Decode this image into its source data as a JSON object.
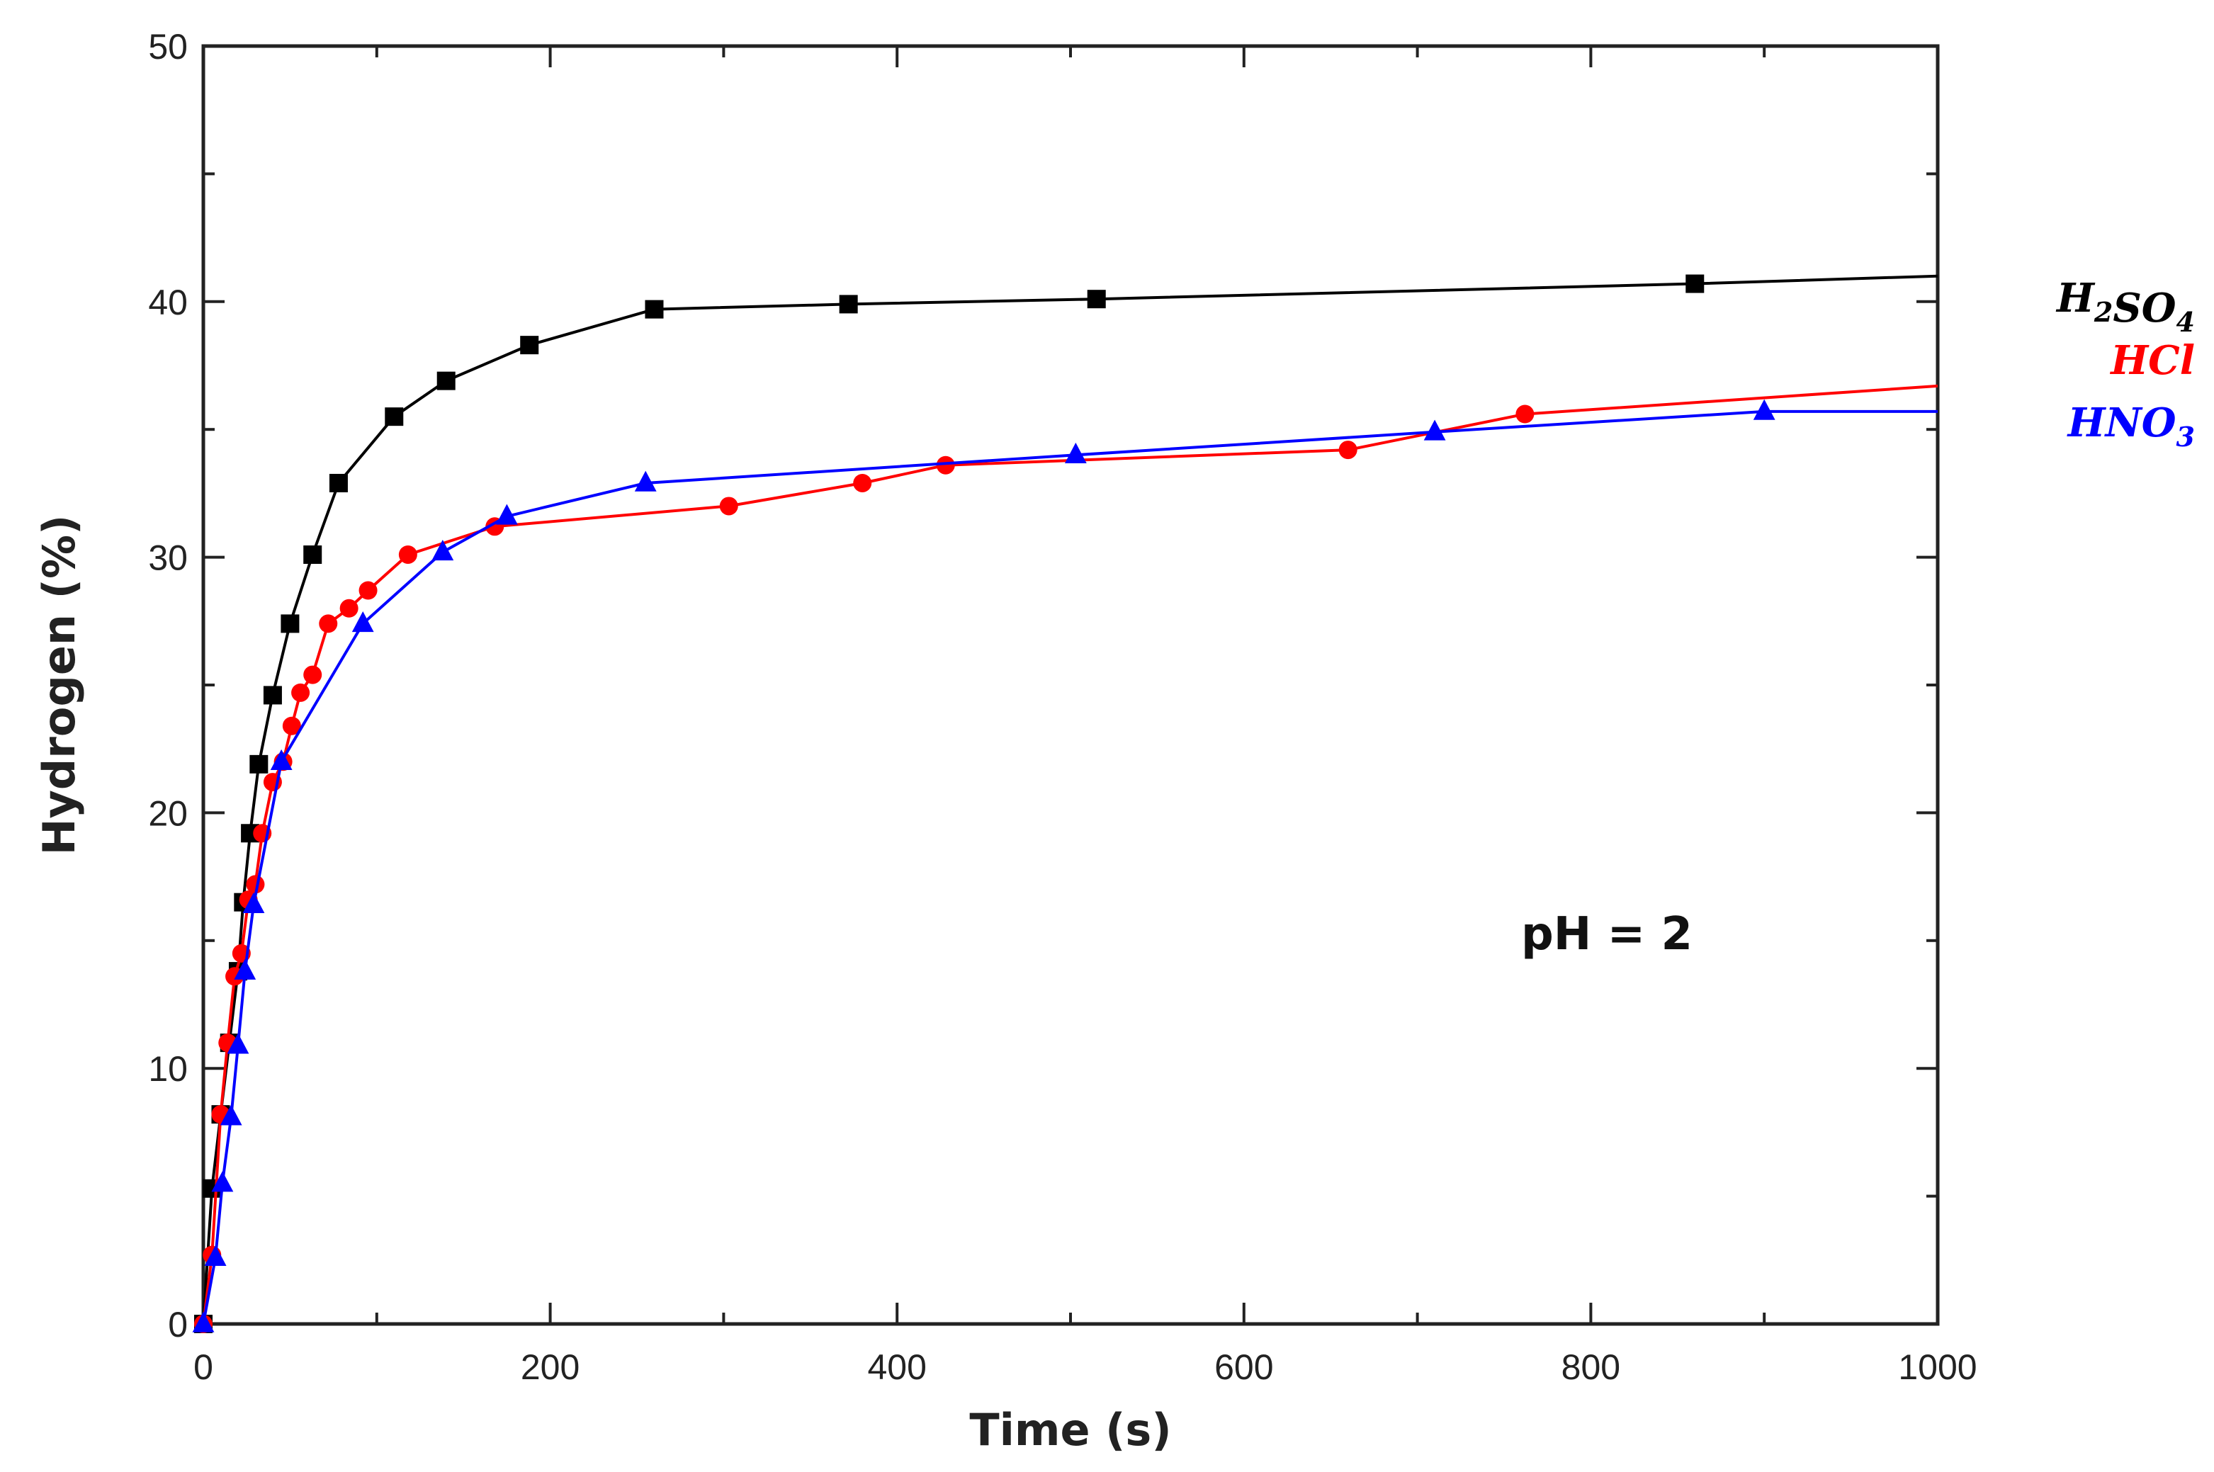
{
  "chart_data": {
    "type": "line",
    "xlabel": "Time (s)",
    "ylabel": "Hydrogen (%)",
    "xlim": [
      0,
      1000
    ],
    "ylim": [
      0,
      50
    ],
    "x_ticks": [
      "0",
      "200",
      "400",
      "600",
      "800",
      "1000"
    ],
    "y_ticks": [
      "0",
      "10",
      "20",
      "30",
      "40",
      "50"
    ],
    "annotation": "pH = 2",
    "grid": false,
    "legend_position": "right, outside plot area",
    "series": [
      {
        "name": "H2SO4",
        "label_main": [
          "H",
          "SO"
        ],
        "label_sub": [
          "2",
          "4"
        ],
        "color": "#000000",
        "marker": "square",
        "points": [
          [
            0,
            0
          ],
          [
            5,
            5.3
          ],
          [
            10,
            8.2
          ],
          [
            15,
            11
          ],
          [
            20,
            13.8
          ],
          [
            23,
            16.5
          ],
          [
            27,
            19.2
          ],
          [
            32,
            21.9
          ],
          [
            40,
            24.6
          ],
          [
            50,
            27.4
          ],
          [
            63,
            30.1
          ],
          [
            78,
            32.9
          ],
          [
            110,
            35.5
          ],
          [
            140,
            36.9
          ],
          [
            188,
            38.3
          ],
          [
            260,
            39.7
          ],
          [
            372,
            39.9
          ],
          [
            515,
            40.1
          ],
          [
            860,
            40.7
          ],
          [
            1000,
            41
          ]
        ]
      },
      {
        "name": "HCl",
        "label_main": [
          "HCl"
        ],
        "label_sub": [],
        "color": "#ff0000",
        "marker": "circle",
        "points": [
          [
            0,
            0
          ],
          [
            5,
            2.7
          ],
          [
            10,
            8.2
          ],
          [
            14,
            11
          ],
          [
            18,
            13.6
          ],
          [
            22,
            14.5
          ],
          [
            26,
            16.6
          ],
          [
            30,
            17.2
          ],
          [
            34,
            19.2
          ],
          [
            40,
            21.2
          ],
          [
            46,
            22
          ],
          [
            51,
            23.4
          ],
          [
            56,
            24.7
          ],
          [
            63,
            25.4
          ],
          [
            72,
            27.4
          ],
          [
            84,
            28
          ],
          [
            95,
            28.7
          ],
          [
            118,
            30.1
          ],
          [
            168,
            31.2
          ],
          [
            303,
            32
          ],
          [
            380,
            32.9
          ],
          [
            428,
            33.6
          ],
          [
            660,
            34.2
          ],
          [
            762,
            35.6
          ],
          [
            1000,
            36.7
          ]
        ]
      },
      {
        "name": "HNO3",
        "label_main": [
          "HNO"
        ],
        "label_sub": [
          "3"
        ],
        "color": "#0000ff",
        "marker": "triangle",
        "points": [
          [
            0,
            0
          ],
          [
            7,
            2.6
          ],
          [
            11,
            5.5
          ],
          [
            16,
            8.1
          ],
          [
            20,
            10.9
          ],
          [
            24,
            13.8
          ],
          [
            29,
            16.4
          ],
          [
            45,
            22
          ],
          [
            92,
            27.4
          ],
          [
            138,
            30.2
          ],
          [
            175,
            31.6
          ],
          [
            255,
            32.9
          ],
          [
            503,
            34
          ],
          [
            710,
            34.9
          ],
          [
            900,
            35.7
          ],
          [
            1000,
            35.7
          ]
        ]
      }
    ]
  }
}
